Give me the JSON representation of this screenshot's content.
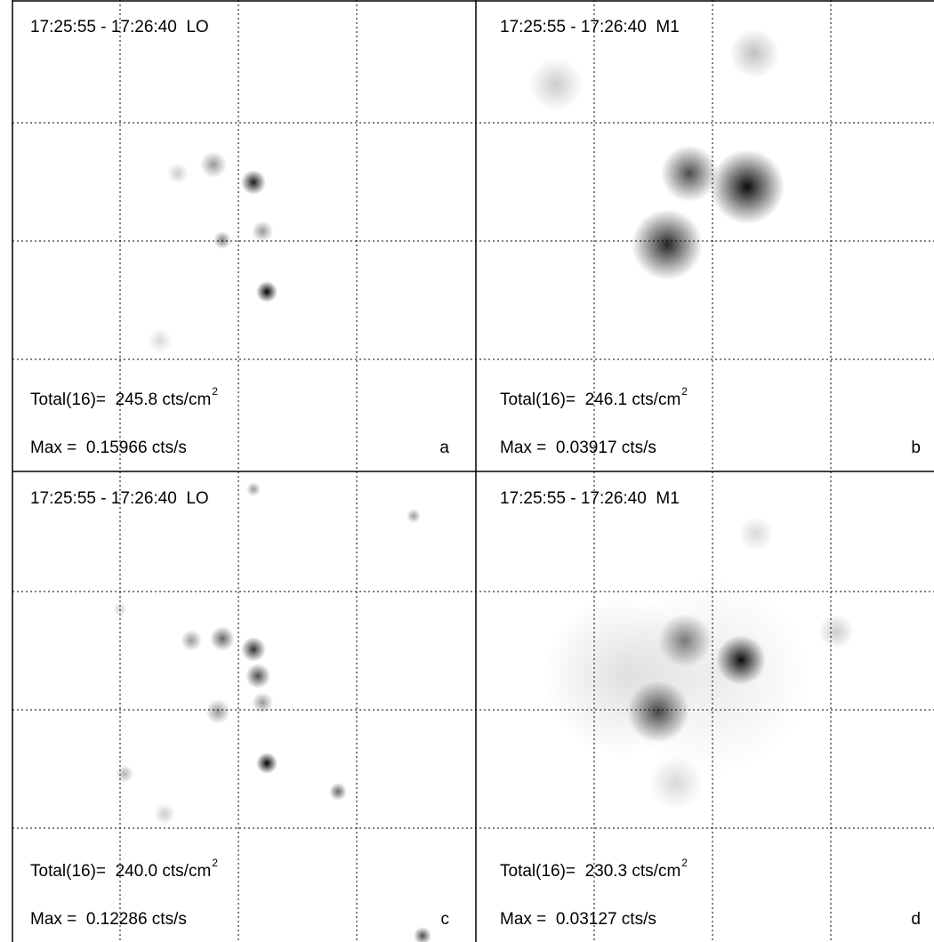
{
  "panels": [
    {
      "time_range": "17:25:55 - 17:26:40  LO",
      "total": "Total(16)=  245.8 cts/cm",
      "total_exp": "2",
      "max": "Max =  0.15966 cts/s",
      "label": "a"
    },
    {
      "time_range": "17:25:55 - 17:26:40  M1",
      "total": "Total(16)=  246.1 cts/cm",
      "total_exp": "2",
      "max": "Max =  0.03917 cts/s",
      "label": "b"
    },
    {
      "time_range": "17:25:55 - 17:26:40  LO",
      "total": "Total(16)=  240.0 cts/cm",
      "total_exp": "2",
      "max": "Max =  0.12286 cts/s",
      "label": "c"
    },
    {
      "time_range": "17:25:55 - 17:26:40  M1",
      "total": "Total(16)=  230.3 cts/cm",
      "total_exp": "2",
      "max": "Max =  0.03127 cts/s",
      "label": "d"
    }
  ]
}
